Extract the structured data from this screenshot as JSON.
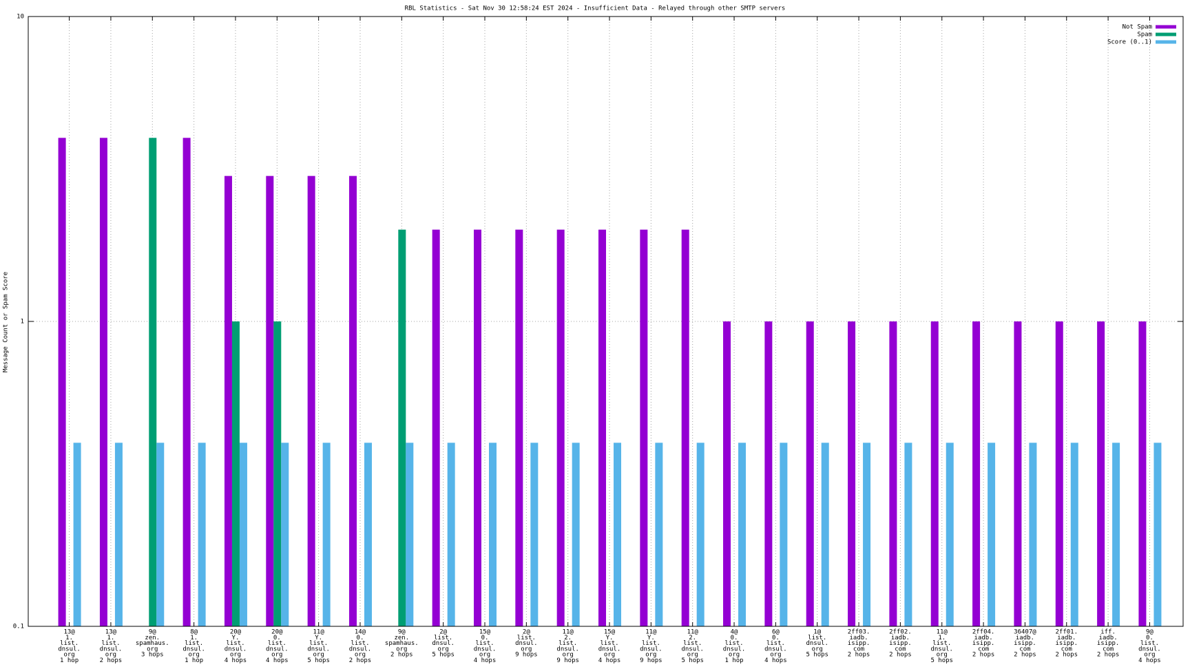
{
  "chart_data": {
    "type": "bar",
    "title": "RBL Statistics - Sat Nov 30 12:58:24 EST 2024 - Insufficient Data - Relayed through other SMTP servers",
    "y_label": "Message Count or Spam Score",
    "categories": [
      [
        "13@",
        "1.",
        "list.",
        "dnsul.",
        "org",
        "1 hop"
      ],
      [
        "13@",
        "1.",
        "list.",
        "dnsul.",
        "org",
        "2 hops"
      ],
      [
        "9@",
        "zen.",
        "spamhaus.",
        "org",
        "3 hops"
      ],
      [
        "8@",
        "1.",
        "list.",
        "dnsul.",
        "org",
        "1 hop"
      ],
      [
        "20@",
        "Y.",
        "list.",
        "dnsul.",
        "org",
        "4 hops"
      ],
      [
        "20@",
        "0.",
        "list.",
        "dnsul.",
        "org",
        "4 hops"
      ],
      [
        "11@",
        "Y.",
        "list.",
        "dnsul.",
        "org",
        "5 hops"
      ],
      [
        "14@",
        "0.",
        "list.",
        "dnsul.",
        "org",
        "2 hops"
      ],
      [
        "9@",
        "zen.",
        "spamhaus.",
        "org",
        "2 hops"
      ],
      [
        "2@",
        "list.",
        "dnsul.",
        "org",
        "5 hops"
      ],
      [
        "15@",
        "0.",
        "list.",
        "dnsul.",
        "org",
        "4 hops"
      ],
      [
        "2@",
        "list.",
        "dnsul.",
        "org",
        "9 hops"
      ],
      [
        "11@",
        "2.",
        "list.",
        "dnsul.",
        "org",
        "9 hops"
      ],
      [
        "15@",
        "Y.",
        "list.",
        "dnsul.",
        "org",
        "4 hops"
      ],
      [
        "11@",
        "Y.",
        "list.",
        "dnsul.",
        "org",
        "9 hops"
      ],
      [
        "11@",
        "2.",
        "list.",
        "dnsul.",
        "org",
        "5 hops"
      ],
      [
        "4@",
        "0.",
        "list.",
        "dnsul.",
        "org",
        "1 hop"
      ],
      [
        "6@",
        "0.",
        "list.",
        "dnsul.",
        "org",
        "4 hops"
      ],
      [
        "1@",
        "list.",
        "dnsul.",
        "org",
        "5 hops"
      ],
      [
        "2ff03.",
        "iadb.",
        "isipp.",
        "com",
        "2 hops"
      ],
      [
        "2ff02.",
        "iadb.",
        "isipp.",
        "com",
        "2 hops"
      ],
      [
        "11@",
        "1.",
        "list.",
        "dnsul.",
        "org",
        "5 hops"
      ],
      [
        "2ff04.",
        "iadb.",
        "isipp.",
        "com",
        "2 hops"
      ],
      [
        "36407@",
        "iadb.",
        "isipp.",
        "com",
        "2 hops"
      ],
      [
        "2ff01.",
        "iadb.",
        "isipp.",
        "com",
        "2 hops"
      ],
      [
        "iff.",
        "iadb.",
        "isipp.",
        "com",
        "2 hops"
      ],
      [
        "9@",
        "0.",
        "list.",
        "dnsul.",
        "org",
        "4 hops"
      ]
    ],
    "series": [
      {
        "name": "Not Spam",
        "color": "#9400d3",
        "values": [
          4,
          4,
          null,
          4,
          3,
          3,
          3,
          3,
          null,
          2,
          2,
          2,
          2,
          2,
          2,
          2,
          1,
          1,
          1,
          1,
          1,
          1,
          1,
          1,
          1,
          1,
          1
        ]
      },
      {
        "name": "Spam",
        "color": "#009e73",
        "values": [
          null,
          null,
          4,
          null,
          1,
          1,
          null,
          null,
          2,
          null,
          null,
          null,
          null,
          null,
          null,
          null,
          null,
          null,
          null,
          null,
          null,
          null,
          null,
          null,
          null,
          null,
          null
        ]
      },
      {
        "name": "Score (0..1)",
        "color": "#56b4e9",
        "values": [
          0.4,
          0.4,
          0.4,
          0.4,
          0.4,
          0.4,
          0.4,
          0.4,
          0.4,
          0.4,
          0.4,
          0.4,
          0.4,
          0.4,
          0.4,
          0.4,
          0.4,
          0.4,
          0.4,
          0.4,
          0.4,
          0.4,
          0.4,
          0.4,
          0.4,
          0.4,
          0.4
        ]
      }
    ],
    "ylim": [
      0.1,
      10
    ],
    "yticks": [
      0.1,
      1,
      10
    ],
    "log_y": true,
    "grid": true,
    "legend": "top-right"
  }
}
